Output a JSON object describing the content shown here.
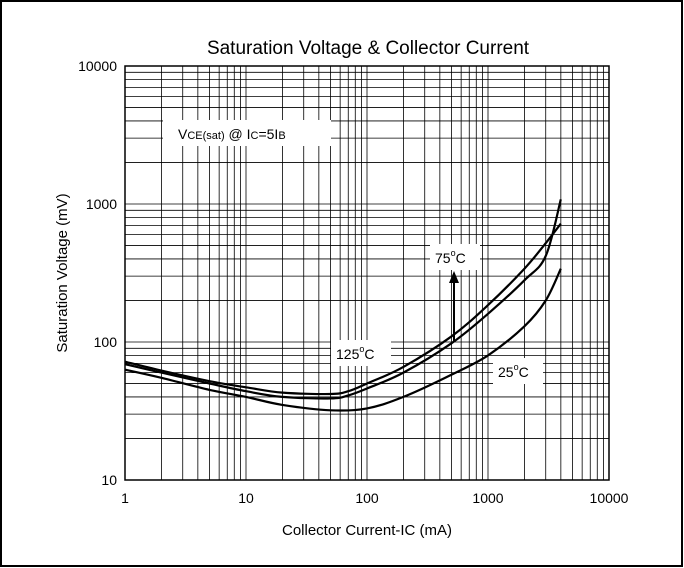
{
  "chart_data": {
    "type": "line",
    "title": "Saturation Voltage & Collector Current",
    "xlabel": "Collector Current-IC (mA)",
    "ylabel": "Saturation Voltage (mV)",
    "x_scale": "log",
    "y_scale": "log",
    "xlim": [
      1,
      10000
    ],
    "ylim": [
      10,
      10000
    ],
    "x_ticks": [
      "1",
      "10",
      "100",
      "1000",
      "10000"
    ],
    "y_ticks": [
      "10",
      "100",
      "1000",
      "10000"
    ],
    "grid": true,
    "condition": {
      "main": "V",
      "main_sub": "CE(sat)",
      "at": " @ I",
      "at_sub": "C",
      "eq": "=5I",
      "eq_sub": "B"
    },
    "labels": {
      "t125": {
        "value": "125",
        "deg": "o",
        "unit": "C"
      },
      "t75": {
        "value": "75",
        "deg": "o",
        "unit": "C"
      },
      "t25": {
        "value": "25",
        "deg": "o",
        "unit": "C"
      }
    },
    "series": [
      {
        "name": "125°C",
        "points": [
          [
            1,
            72
          ],
          [
            2,
            62
          ],
          [
            5,
            52
          ],
          [
            10,
            47
          ],
          [
            20,
            43
          ],
          [
            50,
            42
          ],
          [
            70,
            44
          ],
          [
            100,
            50
          ],
          [
            200,
            66
          ],
          [
            500,
            110
          ],
          [
            1000,
            185
          ],
          [
            2000,
            340
          ],
          [
            3000,
            520
          ],
          [
            4000,
            720
          ]
        ]
      },
      {
        "name": "75°C",
        "points": [
          [
            1,
            69
          ],
          [
            2,
            60
          ],
          [
            5,
            50
          ],
          [
            10,
            44
          ],
          [
            20,
            40
          ],
          [
            50,
            39
          ],
          [
            70,
            41
          ],
          [
            100,
            46
          ],
          [
            200,
            60
          ],
          [
            500,
            98
          ],
          [
            1000,
            160
          ],
          [
            2000,
            280
          ],
          [
            3000,
            420
          ],
          [
            4000,
            1080
          ]
        ]
      },
      {
        "name": "25°C",
        "points": [
          [
            1,
            63
          ],
          [
            2,
            55
          ],
          [
            5,
            45
          ],
          [
            10,
            40
          ],
          [
            20,
            35
          ],
          [
            50,
            32
          ],
          [
            100,
            33
          ],
          [
            200,
            40
          ],
          [
            500,
            58
          ],
          [
            1000,
            80
          ],
          [
            2000,
            130
          ],
          [
            3000,
            200
          ],
          [
            4000,
            340
          ]
        ]
      }
    ]
  }
}
